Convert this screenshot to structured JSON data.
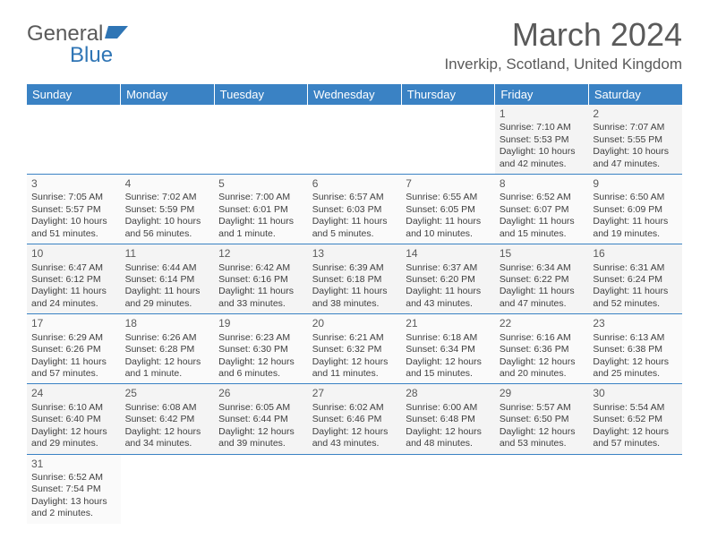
{
  "logo": {
    "text1": "General",
    "text2": "Blue",
    "shape_color": "#2f75b5"
  },
  "title": "March 2024",
  "location": "Inverkip, Scotland, United Kingdom",
  "colors": {
    "header_bg": "#3a82c4",
    "header_text": "#ffffff",
    "row_alt_bg": "#f4f4f4",
    "row_bg": "#fafafa",
    "border": "#3a82c4",
    "text": "#404040"
  },
  "day_headers": [
    "Sunday",
    "Monday",
    "Tuesday",
    "Wednesday",
    "Thursday",
    "Friday",
    "Saturday"
  ],
  "weeks": [
    [
      null,
      null,
      null,
      null,
      null,
      {
        "n": "1",
        "sunrise": "7:10 AM",
        "sunset": "5:53 PM",
        "dl": "10 hours and 42 minutes."
      },
      {
        "n": "2",
        "sunrise": "7:07 AM",
        "sunset": "5:55 PM",
        "dl": "10 hours and 47 minutes."
      }
    ],
    [
      {
        "n": "3",
        "sunrise": "7:05 AM",
        "sunset": "5:57 PM",
        "dl": "10 hours and 51 minutes."
      },
      {
        "n": "4",
        "sunrise": "7:02 AM",
        "sunset": "5:59 PM",
        "dl": "10 hours and 56 minutes."
      },
      {
        "n": "5",
        "sunrise": "7:00 AM",
        "sunset": "6:01 PM",
        "dl": "11 hours and 1 minute."
      },
      {
        "n": "6",
        "sunrise": "6:57 AM",
        "sunset": "6:03 PM",
        "dl": "11 hours and 5 minutes."
      },
      {
        "n": "7",
        "sunrise": "6:55 AM",
        "sunset": "6:05 PM",
        "dl": "11 hours and 10 minutes."
      },
      {
        "n": "8",
        "sunrise": "6:52 AM",
        "sunset": "6:07 PM",
        "dl": "11 hours and 15 minutes."
      },
      {
        "n": "9",
        "sunrise": "6:50 AM",
        "sunset": "6:09 PM",
        "dl": "11 hours and 19 minutes."
      }
    ],
    [
      {
        "n": "10",
        "sunrise": "6:47 AM",
        "sunset": "6:12 PM",
        "dl": "11 hours and 24 minutes."
      },
      {
        "n": "11",
        "sunrise": "6:44 AM",
        "sunset": "6:14 PM",
        "dl": "11 hours and 29 minutes."
      },
      {
        "n": "12",
        "sunrise": "6:42 AM",
        "sunset": "6:16 PM",
        "dl": "11 hours and 33 minutes."
      },
      {
        "n": "13",
        "sunrise": "6:39 AM",
        "sunset": "6:18 PM",
        "dl": "11 hours and 38 minutes."
      },
      {
        "n": "14",
        "sunrise": "6:37 AM",
        "sunset": "6:20 PM",
        "dl": "11 hours and 43 minutes."
      },
      {
        "n": "15",
        "sunrise": "6:34 AM",
        "sunset": "6:22 PM",
        "dl": "11 hours and 47 minutes."
      },
      {
        "n": "16",
        "sunrise": "6:31 AM",
        "sunset": "6:24 PM",
        "dl": "11 hours and 52 minutes."
      }
    ],
    [
      {
        "n": "17",
        "sunrise": "6:29 AM",
        "sunset": "6:26 PM",
        "dl": "11 hours and 57 minutes."
      },
      {
        "n": "18",
        "sunrise": "6:26 AM",
        "sunset": "6:28 PM",
        "dl": "12 hours and 1 minute."
      },
      {
        "n": "19",
        "sunrise": "6:23 AM",
        "sunset": "6:30 PM",
        "dl": "12 hours and 6 minutes."
      },
      {
        "n": "20",
        "sunrise": "6:21 AM",
        "sunset": "6:32 PM",
        "dl": "12 hours and 11 minutes."
      },
      {
        "n": "21",
        "sunrise": "6:18 AM",
        "sunset": "6:34 PM",
        "dl": "12 hours and 15 minutes."
      },
      {
        "n": "22",
        "sunrise": "6:16 AM",
        "sunset": "6:36 PM",
        "dl": "12 hours and 20 minutes."
      },
      {
        "n": "23",
        "sunrise": "6:13 AM",
        "sunset": "6:38 PM",
        "dl": "12 hours and 25 minutes."
      }
    ],
    [
      {
        "n": "24",
        "sunrise": "6:10 AM",
        "sunset": "6:40 PM",
        "dl": "12 hours and 29 minutes."
      },
      {
        "n": "25",
        "sunrise": "6:08 AM",
        "sunset": "6:42 PM",
        "dl": "12 hours and 34 minutes."
      },
      {
        "n": "26",
        "sunrise": "6:05 AM",
        "sunset": "6:44 PM",
        "dl": "12 hours and 39 minutes."
      },
      {
        "n": "27",
        "sunrise": "6:02 AM",
        "sunset": "6:46 PM",
        "dl": "12 hours and 43 minutes."
      },
      {
        "n": "28",
        "sunrise": "6:00 AM",
        "sunset": "6:48 PM",
        "dl": "12 hours and 48 minutes."
      },
      {
        "n": "29",
        "sunrise": "5:57 AM",
        "sunset": "6:50 PM",
        "dl": "12 hours and 53 minutes."
      },
      {
        "n": "30",
        "sunrise": "5:54 AM",
        "sunset": "6:52 PM",
        "dl": "12 hours and 57 minutes."
      }
    ],
    [
      {
        "n": "31",
        "sunrise": "6:52 AM",
        "sunset": "7:54 PM",
        "dl": "13 hours and 2 minutes."
      },
      null,
      null,
      null,
      null,
      null,
      null
    ]
  ],
  "labels": {
    "sunrise": "Sunrise:",
    "sunset": "Sunset:",
    "daylight": "Daylight:"
  }
}
